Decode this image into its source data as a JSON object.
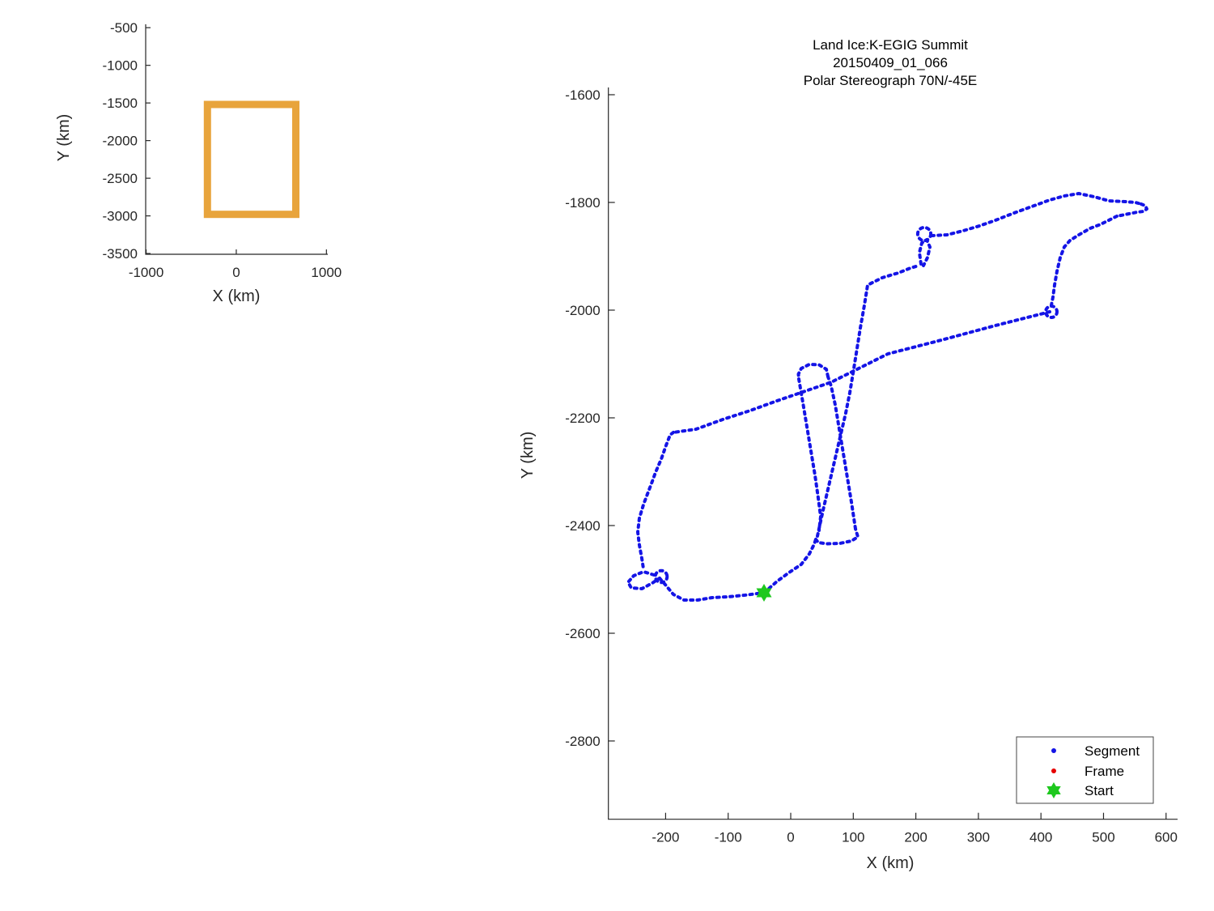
{
  "chart_data": [
    {
      "id": "overview",
      "type": "line",
      "title": "",
      "xlabel": "X (km)",
      "ylabel": "Y (km)",
      "xticks": [
        -1000,
        0,
        1000
      ],
      "yticks": [
        -500,
        -1000,
        -1500,
        -2000,
        -2500,
        -3000,
        -3500
      ],
      "xlim": [
        -1005,
        1015
      ],
      "ylim": [
        -3510,
        -455
      ],
      "grid": false,
      "box_color": "#E8A43C",
      "coverage_rect_km": {
        "x_min": -320,
        "x_max": 660,
        "y_min": -2980,
        "y_max": -1520
      }
    },
    {
      "id": "main",
      "type": "scatter",
      "title_lines": [
        "Land Ice:K-EGIG Summit",
        "20150409_01_066",
        "Polar Stereograph 70N/-45E"
      ],
      "xlabel": "X (km)",
      "ylabel": "Y (km)",
      "xticks": [
        -200,
        -100,
        0,
        100,
        200,
        300,
        400,
        500,
        600
      ],
      "yticks": [
        -1600,
        -1800,
        -2000,
        -2200,
        -2400,
        -2600,
        -2800
      ],
      "xlim": [
        -291.5,
        618.4
      ],
      "ylim": [
        -2945.4,
        -1586.5
      ],
      "grid": false,
      "segment_color": "#1414E6",
      "frame_color": "#E60000",
      "start_color": "#1EC81E",
      "start_point_km": {
        "x": -42.7,
        "y": -2524.8
      },
      "loops_km": [
        {
          "cx": -207.0,
          "cy": -2494.7,
          "r": 9.5
        },
        {
          "cx": 213.5,
          "cy": -1858.6,
          "r": 10.5
        },
        {
          "cx": 416.6,
          "cy": -2003.0,
          "r": 9.0
        }
      ],
      "segments_km": [
        [
          [
            414.0,
            -2003.0
          ],
          [
            327.3,
            -2028.6
          ],
          [
            240.6,
            -2055.6
          ],
          [
            155.2,
            -2081.2
          ],
          [
            64.7,
            -2133.8
          ],
          [
            -22.0,
            -2168.4
          ],
          [
            -64.7,
            -2186.5
          ],
          [
            -108.7,
            -2203.0
          ],
          [
            -151.4,
            -2221.1
          ],
          [
            -187.6,
            -2227.1
          ]
        ],
        [
          [
            -187.6,
            -2227.1
          ],
          [
            -192.8,
            -2231.6
          ],
          [
            -199.2,
            -2251.1
          ],
          [
            -207.0,
            -2276.7
          ],
          [
            -216.0,
            -2300.8
          ],
          [
            -222.5,
            -2321.8
          ],
          [
            -229.0,
            -2341.4
          ],
          [
            -235.4,
            -2360.9
          ],
          [
            -241.9,
            -2386.5
          ],
          [
            -244.5,
            -2412.0
          ],
          [
            -241.9,
            -2436.1
          ],
          [
            -238.0,
            -2461.7
          ],
          [
            -235.4,
            -2481.2
          ]
        ],
        [
          [
            -218.6,
            -2491.7
          ],
          [
            -235.4,
            -2485.7
          ],
          [
            -251.0,
            -2493.2
          ],
          [
            -260.0,
            -2505.3
          ],
          [
            -254.9,
            -2515.8
          ],
          [
            -238.0,
            -2517.3
          ],
          [
            -221.2,
            -2506.8
          ],
          [
            -209.6,
            -2497.7
          ]
        ],
        [
          [
            -209.6,
            -2497.7
          ],
          [
            -200.5,
            -2509.8
          ],
          [
            -187.6,
            -2527.8
          ],
          [
            -170.8,
            -2538.3
          ],
          [
            -148.8,
            -2538.3
          ],
          [
            -125.5,
            -2533.8
          ],
          [
            -99.6,
            -2532.3
          ],
          [
            -73.7,
            -2529.3
          ],
          [
            -42.7,
            -2524.8
          ]
        ],
        [
          [
            -42.7,
            -2524.8
          ],
          [
            -22.0,
            -2503.8
          ],
          [
            -2.6,
            -2487.2
          ],
          [
            16.8,
            -2472.2
          ],
          [
            29.8,
            -2452.6
          ],
          [
            37.5,
            -2434.6
          ],
          [
            40.1,
            -2425.6
          ]
        ],
        [
          [
            40.1,
            -2425.6
          ],
          [
            44.0,
            -2431.6
          ],
          [
            58.2,
            -2433.8
          ],
          [
            78.9,
            -2433.1
          ],
          [
            97.0,
            -2428.6
          ],
          [
            107.4,
            -2421.1
          ],
          [
            103.5,
            -2406.0
          ]
        ],
        [
          [
            103.5,
            -2406.0
          ],
          [
            97.0,
            -2356.4
          ],
          [
            90.6,
            -2311.3
          ],
          [
            84.1,
            -2266.2
          ],
          [
            77.6,
            -2221.1
          ],
          [
            71.2,
            -2176.0
          ],
          [
            64.7,
            -2141.4
          ],
          [
            59.5,
            -2123.3
          ]
        ],
        [
          [
            59.5,
            -2123.3
          ],
          [
            56.9,
            -2109.8
          ],
          [
            45.3,
            -2101.5
          ],
          [
            29.8,
            -2100.8
          ],
          [
            16.8,
            -2108.3
          ],
          [
            12.3,
            -2118.8
          ],
          [
            12.9,
            -2127.8
          ]
        ],
        [
          [
            12.9,
            -2127.8
          ],
          [
            19.4,
            -2171.4
          ],
          [
            25.9,
            -2216.5
          ],
          [
            32.3,
            -2261.7
          ],
          [
            38.8,
            -2306.8
          ],
          [
            44.0,
            -2348.9
          ],
          [
            47.9,
            -2383.5
          ],
          [
            45.3,
            -2409.0
          ]
        ],
        [
          [
            42.7,
            -2419.5
          ],
          [
            51.7,
            -2371.4
          ],
          [
            60.8,
            -2326.3
          ],
          [
            69.9,
            -2281.2
          ],
          [
            78.9,
            -2236.1
          ],
          [
            88.0,
            -2191.0
          ],
          [
            94.4,
            -2153.4
          ],
          [
            100.9,
            -2108.3
          ],
          [
            106.1,
            -2070.7
          ],
          [
            111.3,
            -2033.1
          ],
          [
            117.7,
            -1991.0
          ],
          [
            122.9,
            -1953.4
          ],
          [
            146.2,
            -1939.8
          ],
          [
            172.1,
            -1930.8
          ],
          [
            191.5,
            -1921.8
          ],
          [
            204.4,
            -1917.3
          ]
        ],
        [
          [
            208.3,
            -1914.3
          ],
          [
            205.7,
            -1893.2
          ],
          [
            209.6,
            -1875.2
          ],
          [
            217.3,
            -1869.2
          ],
          [
            222.5,
            -1882.7
          ],
          [
            218.6,
            -1902.3
          ],
          [
            212.2,
            -1917.3
          ]
        ],
        [
          [
            225.1,
            -1861.7
          ],
          [
            249.7,
            -1860.2
          ],
          [
            275.5,
            -1852.6
          ],
          [
            301.4,
            -1843.6
          ],
          [
            327.3,
            -1833.1
          ],
          [
            357.0,
            -1819.5
          ],
          [
            385.5,
            -1807.5
          ],
          [
            414.0,
            -1795.5
          ],
          [
            437.3,
            -1788.0
          ],
          [
            460.5,
            -1783.5
          ],
          [
            485.1,
            -1789.5
          ],
          [
            508.4,
            -1797.0
          ],
          [
            534.3,
            -1798.5
          ],
          [
            551.1,
            -1800.0
          ],
          [
            560.2,
            -1803.0
          ]
        ],
        [
          [
            560.2,
            -1803.0
          ],
          [
            566.6,
            -1806.0
          ],
          [
            569.2,
            -1812.0
          ],
          [
            564.0,
            -1816.5
          ],
          [
            553.7,
            -1818.0
          ],
          [
            540.7,
            -1821.1
          ],
          [
            521.3,
            -1825.6
          ]
        ],
        [
          [
            521.3,
            -1825.6
          ],
          [
            495.5,
            -1840.6
          ],
          [
            478.7,
            -1848.1
          ],
          [
            460.5,
            -1860.2
          ],
          [
            446.3,
            -1870.7
          ],
          [
            437.3,
            -1882.7
          ],
          [
            430.8,
            -1902.3
          ],
          [
            425.6,
            -1927.8
          ],
          [
            421.7,
            -1953.4
          ],
          [
            419.1,
            -1975.9
          ],
          [
            416.6,
            -1991.0
          ]
        ]
      ]
    }
  ],
  "legend": {
    "items": [
      {
        "label": "Segment",
        "marker": "dot",
        "color": "#1414E6"
      },
      {
        "label": "Frame",
        "marker": "dot",
        "color": "#E60000"
      },
      {
        "label": "Start",
        "marker": "hexagram",
        "color": "#1EC81E"
      }
    ]
  }
}
